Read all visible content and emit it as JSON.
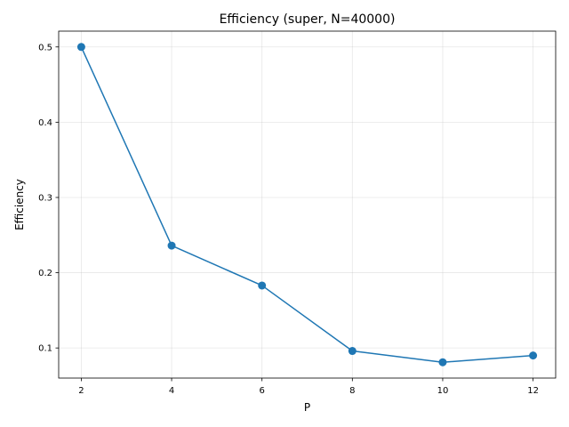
{
  "chart_data": {
    "type": "line",
    "title": "Efficiency (super, N=40000)",
    "xlabel": "P",
    "ylabel": "Efficiency",
    "x": [
      2,
      4,
      6,
      8,
      10,
      12
    ],
    "series": [
      {
        "name": "Efficiency",
        "color": "#1f77b4",
        "values": [
          0.5,
          0.236,
          0.183,
          0.096,
          0.081,
          0.09
        ]
      }
    ],
    "xlim": [
      1.5,
      12.5
    ],
    "ylim": [
      0.06,
      0.521
    ],
    "xticks": [
      2,
      4,
      6,
      8,
      10,
      12
    ],
    "xtick_labels": [
      "2",
      "4",
      "6",
      "8",
      "10",
      "12"
    ],
    "yticks": [
      0.1,
      0.2,
      0.3,
      0.4,
      0.5
    ],
    "ytick_labels": [
      "0.1",
      "0.2",
      "0.3",
      "0.4",
      "0.5"
    ],
    "grid": true,
    "legend": "none"
  }
}
